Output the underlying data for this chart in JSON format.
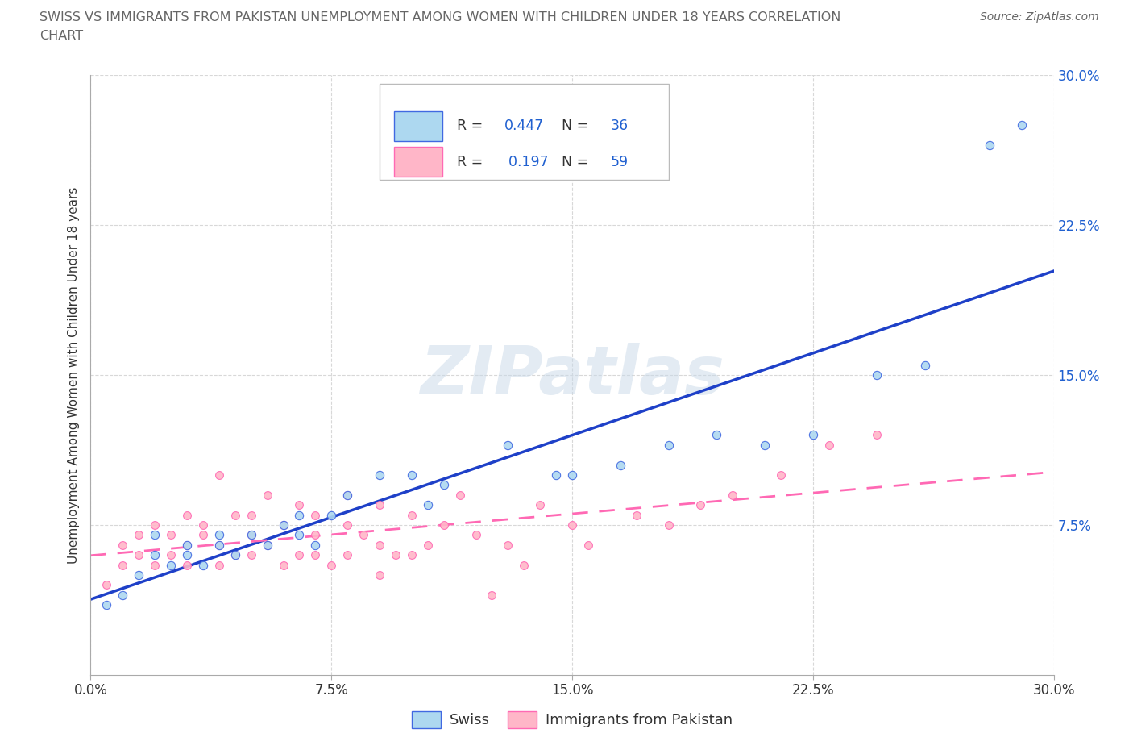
{
  "title_line1": "SWISS VS IMMIGRANTS FROM PAKISTAN UNEMPLOYMENT AMONG WOMEN WITH CHILDREN UNDER 18 YEARS CORRELATION",
  "title_line2": "CHART",
  "source": "Source: ZipAtlas.com",
  "ylabel": "Unemployment Among Women with Children Under 18 years",
  "xlim": [
    0.0,
    0.3
  ],
  "ylim": [
    0.0,
    0.3
  ],
  "xticks": [
    0.0,
    0.075,
    0.15,
    0.225,
    0.3
  ],
  "yticks": [
    0.075,
    0.15,
    0.225,
    0.3
  ],
  "xticklabels": [
    "0.0%",
    "7.5%",
    "15.0%",
    "22.5%",
    "30.0%"
  ],
  "right_yticklabels": [
    "7.5%",
    "15.0%",
    "22.5%",
    "30.0%"
  ],
  "swiss_R": 0.447,
  "swiss_N": 36,
  "pakistan_R": 0.197,
  "pakistan_N": 59,
  "swiss_face_color": "#ADD8F0",
  "swiss_edge_color": "#4169E1",
  "pakistan_face_color": "#FFB6C8",
  "pakistan_edge_color": "#FF69B4",
  "swiss_line_color": "#1E40C8",
  "pakistan_line_color": "#FF69B4",
  "background_color": "#FFFFFF",
  "grid_color": "#D8D8D8",
  "title_color": "#666666",
  "source_color": "#666666",
  "axis_label_color": "#333333",
  "right_tick_color": "#2060D0",
  "swiss_x": [
    0.005,
    0.01,
    0.015,
    0.02,
    0.02,
    0.025,
    0.03,
    0.03,
    0.035,
    0.04,
    0.04,
    0.045,
    0.05,
    0.055,
    0.06,
    0.065,
    0.065,
    0.07,
    0.075,
    0.08,
    0.09,
    0.1,
    0.105,
    0.11,
    0.13,
    0.145,
    0.15,
    0.165,
    0.18,
    0.195,
    0.21,
    0.225,
    0.245,
    0.26,
    0.28,
    0.29
  ],
  "swiss_y": [
    0.035,
    0.04,
    0.05,
    0.06,
    0.07,
    0.055,
    0.06,
    0.065,
    0.055,
    0.065,
    0.07,
    0.06,
    0.07,
    0.065,
    0.075,
    0.07,
    0.08,
    0.065,
    0.08,
    0.09,
    0.1,
    0.1,
    0.085,
    0.095,
    0.115,
    0.1,
    0.1,
    0.105,
    0.115,
    0.12,
    0.115,
    0.12,
    0.15,
    0.155,
    0.265,
    0.275
  ],
  "pakistan_x": [
    0.005,
    0.01,
    0.01,
    0.015,
    0.015,
    0.02,
    0.02,
    0.025,
    0.025,
    0.03,
    0.03,
    0.03,
    0.035,
    0.035,
    0.04,
    0.04,
    0.04,
    0.045,
    0.045,
    0.05,
    0.05,
    0.05,
    0.055,
    0.055,
    0.06,
    0.06,
    0.065,
    0.065,
    0.07,
    0.07,
    0.07,
    0.075,
    0.08,
    0.08,
    0.08,
    0.085,
    0.09,
    0.09,
    0.09,
    0.095,
    0.1,
    0.1,
    0.105,
    0.11,
    0.115,
    0.12,
    0.125,
    0.13,
    0.135,
    0.14,
    0.15,
    0.155,
    0.17,
    0.18,
    0.19,
    0.2,
    0.215,
    0.23,
    0.245
  ],
  "pakistan_y": [
    0.045,
    0.055,
    0.065,
    0.06,
    0.07,
    0.055,
    0.075,
    0.06,
    0.07,
    0.055,
    0.065,
    0.08,
    0.07,
    0.075,
    0.055,
    0.065,
    0.1,
    0.06,
    0.08,
    0.06,
    0.07,
    0.08,
    0.065,
    0.09,
    0.055,
    0.075,
    0.06,
    0.085,
    0.06,
    0.07,
    0.08,
    0.055,
    0.06,
    0.075,
    0.09,
    0.07,
    0.05,
    0.065,
    0.085,
    0.06,
    0.06,
    0.08,
    0.065,
    0.075,
    0.09,
    0.07,
    0.04,
    0.065,
    0.055,
    0.085,
    0.075,
    0.065,
    0.08,
    0.075,
    0.085,
    0.09,
    0.1,
    0.115,
    0.12
  ],
  "watermark_text": "ZIPatlas",
  "watermark_color": "#C8D8E8",
  "watermark_alpha": 0.5,
  "watermark_fontsize": 60
}
